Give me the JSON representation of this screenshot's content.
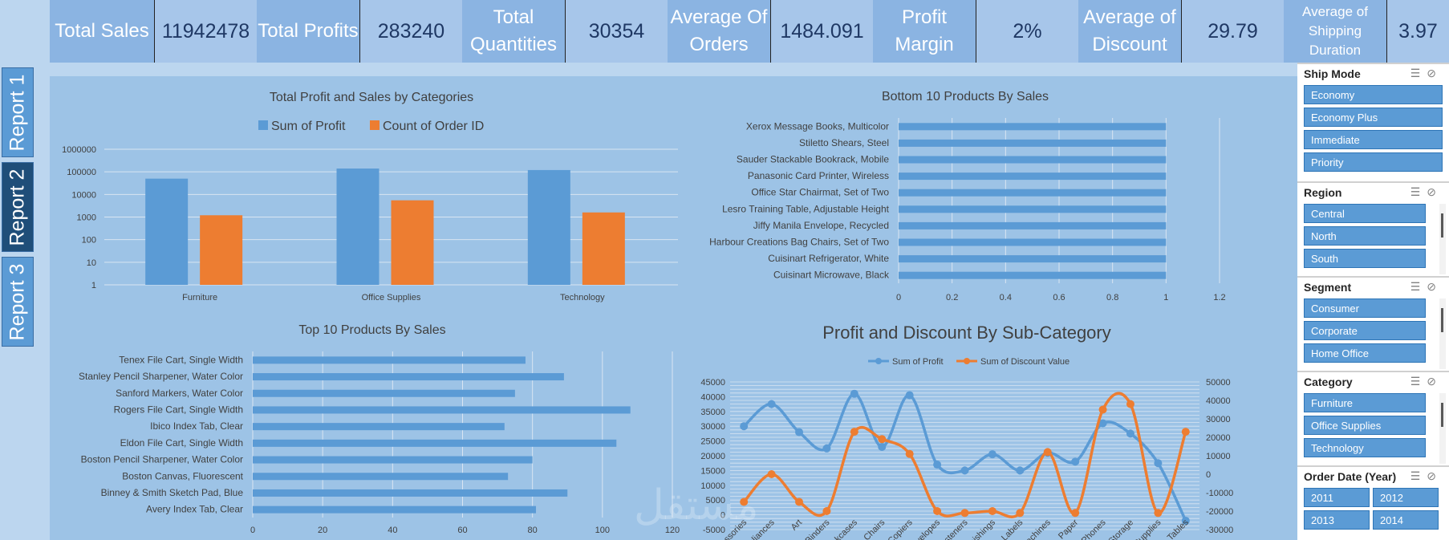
{
  "kpis": [
    {
      "label": "Total Sales",
      "value": "11942478"
    },
    {
      "label": "Total Profits",
      "value": "283240"
    },
    {
      "label": "Total Quantities",
      "value": "30354"
    },
    {
      "label": "Average Of Orders",
      "value": "1484.091"
    },
    {
      "label": "Profit Margin",
      "value": "2%"
    },
    {
      "label": "Average of Discount",
      "value": "29.79"
    },
    {
      "label": "Average of Shipping Duration",
      "value": "3.97"
    }
  ],
  "tabs": [
    "Report 1",
    "Report 2",
    "Report 3"
  ],
  "active_tab": "Report 2",
  "slicers": [
    {
      "title": "Ship Mode",
      "items": [
        "Economy",
        "Economy Plus",
        "Immediate",
        "Priority"
      ]
    },
    {
      "title": "Region",
      "items": [
        "Central",
        "North",
        "South"
      ]
    },
    {
      "title": "Segment",
      "items": [
        "Consumer",
        "Corporate",
        "Home Office"
      ]
    },
    {
      "title": "Category",
      "items": [
        "Furniture",
        "Office Supplies",
        "Technology"
      ]
    },
    {
      "title": "Order Date (Year)",
      "items": [
        "2011",
        "2012",
        "2013",
        "2014"
      ]
    }
  ],
  "colors": {
    "blue": "#5b9bd5",
    "orange": "#ed7d31",
    "panel": "#9dc3e6"
  },
  "chart_data": [
    {
      "type": "bar",
      "title": "Total Profit and Sales by Categories",
      "categories": [
        "Furniture",
        "Office Supplies",
        "Technology"
      ],
      "series": [
        {
          "name": "Sum of Profit",
          "values": [
            50000,
            140000,
            120000
          ]
        },
        {
          "name": "Count of Order ID",
          "values": [
            1200,
            5500,
            1600
          ]
        }
      ],
      "y_scale": "log",
      "y_ticks": [
        "1",
        "10",
        "100",
        "1000",
        "10000",
        "100000",
        "1000000"
      ]
    },
    {
      "type": "bar",
      "orientation": "horizontal",
      "title": "Bottom 10 Products By Sales",
      "categories": [
        "Xerox Message Books, Multicolor",
        "Stiletto Shears, Steel",
        "Sauder Stackable Bookrack, Mobile",
        "Panasonic Card Printer, Wireless",
        "Office Star Chairmat, Set of Two",
        "Lesro Training Table, Adjustable Height",
        "Jiffy Manila Envelope, Recycled",
        "Harbour Creations Bag Chairs, Set of Two",
        "Cuisinart Refrigerator, White",
        "Cuisinart Microwave, Black"
      ],
      "values": [
        1,
        1,
        1,
        1,
        1,
        1,
        1,
        1,
        1,
        1
      ],
      "x_ticks": [
        "0",
        "0.2",
        "0.4",
        "0.6",
        "0.8",
        "1",
        "1.2"
      ],
      "xlim": [
        0,
        1.2
      ]
    },
    {
      "type": "bar",
      "orientation": "horizontal",
      "title": "Top 10 Products By Sales",
      "categories": [
        "Tenex File Cart, Single Width",
        "Stanley Pencil Sharpener, Water Color",
        "Sanford Markers, Water Color",
        "Rogers File Cart, Single Width",
        "Ibico Index Tab, Clear",
        "Eldon File Cart, Single Width",
        "Boston Pencil Sharpener, Water Color",
        "Boston Canvas, Fluorescent",
        "Binney & Smith Sketch Pad, Blue",
        "Avery Index Tab, Clear"
      ],
      "values": [
        78,
        89,
        75,
        108,
        72,
        104,
        80,
        73,
        90,
        81
      ],
      "x_ticks": [
        "0",
        "20",
        "40",
        "60",
        "80",
        "100",
        "120"
      ],
      "xlim": [
        0,
        120
      ]
    },
    {
      "type": "line",
      "title": "Profit and Discount By Sub-Category",
      "categories": [
        "Accessories",
        "Appliances",
        "Art",
        "Binders",
        "Bookcases",
        "Chairs",
        "Copiers",
        "Envelopes",
        "Fasteners",
        "Furnishings",
        "Labels",
        "Machines",
        "Paper",
        "Phones",
        "Storage",
        "Supplies",
        "Tables"
      ],
      "series": [
        {
          "name": "Sum of Profit",
          "axis": "left",
          "values": [
            30000,
            37500,
            28000,
            22500,
            41000,
            23000,
            40500,
            17000,
            15000,
            20500,
            15000,
            21000,
            18000,
            31000,
            27500,
            17500,
            -2000
          ]
        },
        {
          "name": "Sum of Discount Value",
          "axis": "right",
          "values": [
            -15000,
            0,
            -15000,
            -20000,
            23000,
            19000,
            11000,
            -20000,
            -21000,
            -20000,
            -21000,
            12000,
            -21000,
            35000,
            38000,
            -21000,
            23000
          ]
        }
      ],
      "left_ticks": [
        "-5000",
        "0",
        "5000",
        "10000",
        "15000",
        "20000",
        "25000",
        "30000",
        "35000",
        "40000",
        "45000"
      ],
      "right_ticks": [
        "-30000",
        "-20000",
        "-10000",
        "0",
        "10000",
        "20000",
        "30000",
        "40000",
        "50000"
      ],
      "ylim_left": [
        -5000,
        45000
      ],
      "ylim_right": [
        -30000,
        50000
      ]
    }
  ]
}
